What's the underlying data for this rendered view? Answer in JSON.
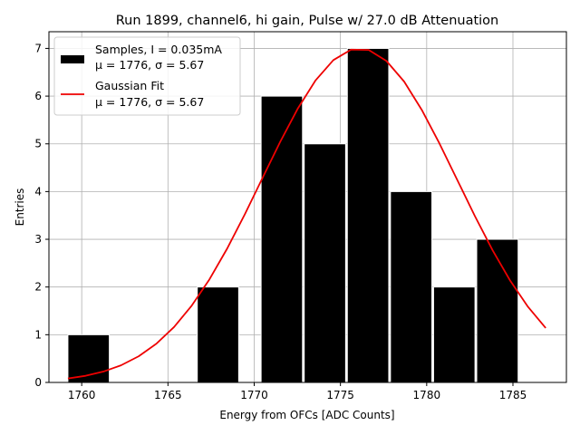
{
  "chart_data": {
    "type": "histogram",
    "title": "Run 1899, channel6, hi gain, Pulse w/ 27.0 dB Attenuation",
    "xlabel": "Energy from OFCs [ADC Counts]",
    "ylabel": "Entries",
    "xlim": [
      1758.1,
      1788.1
    ],
    "ylim": [
      0,
      7.35
    ],
    "grid": true,
    "xticks": [
      1760,
      1765,
      1770,
      1775,
      1780,
      1785
    ],
    "yticks": [
      0,
      1,
      2,
      3,
      4,
      5,
      6,
      7
    ],
    "bins": {
      "edges": [
        1759.2,
        1761.7,
        1764.2,
        1766.7,
        1769.2,
        1771.7,
        1774.2,
        1776.7,
        1779.2,
        1781.7,
        1784.2,
        1786.7
      ],
      "bar_starts": [
        1759.2,
        1761.7,
        1764.2,
        1766.7,
        1770.4,
        1772.9,
        1775.4,
        1777.9,
        1780.4,
        1782.9,
        1785.4
      ],
      "bar_width": 2.4,
      "counts": [
        1,
        0,
        0,
        2,
        6,
        5,
        7,
        4,
        2,
        3,
        0
      ]
    },
    "series": [
      {
        "name": "Samples, I = 0.035mA",
        "stats": "μ = 1776, σ = 5.67",
        "kind": "bars",
        "color": "#000000",
        "edge_color": "#ffffff"
      },
      {
        "name": "Gaussian Fit",
        "stats": "μ = 1776, σ = 5.67",
        "kind": "line",
        "color": "#ee0000",
        "amplitude": 7.0,
        "mu": 1776.1,
        "sigma": 5.67,
        "x_range": [
          1759.2,
          1786.9
        ],
        "n_points": 28
      }
    ],
    "legend": {
      "placement": "upper-left",
      "entries": [
        {
          "line1": "Samples, I = 0.035mA",
          "line2": "μ = 1776, σ = 5.67"
        },
        {
          "line1": "Gaussian Fit",
          "line2": "μ = 1776, σ = 5.67"
        }
      ]
    }
  }
}
